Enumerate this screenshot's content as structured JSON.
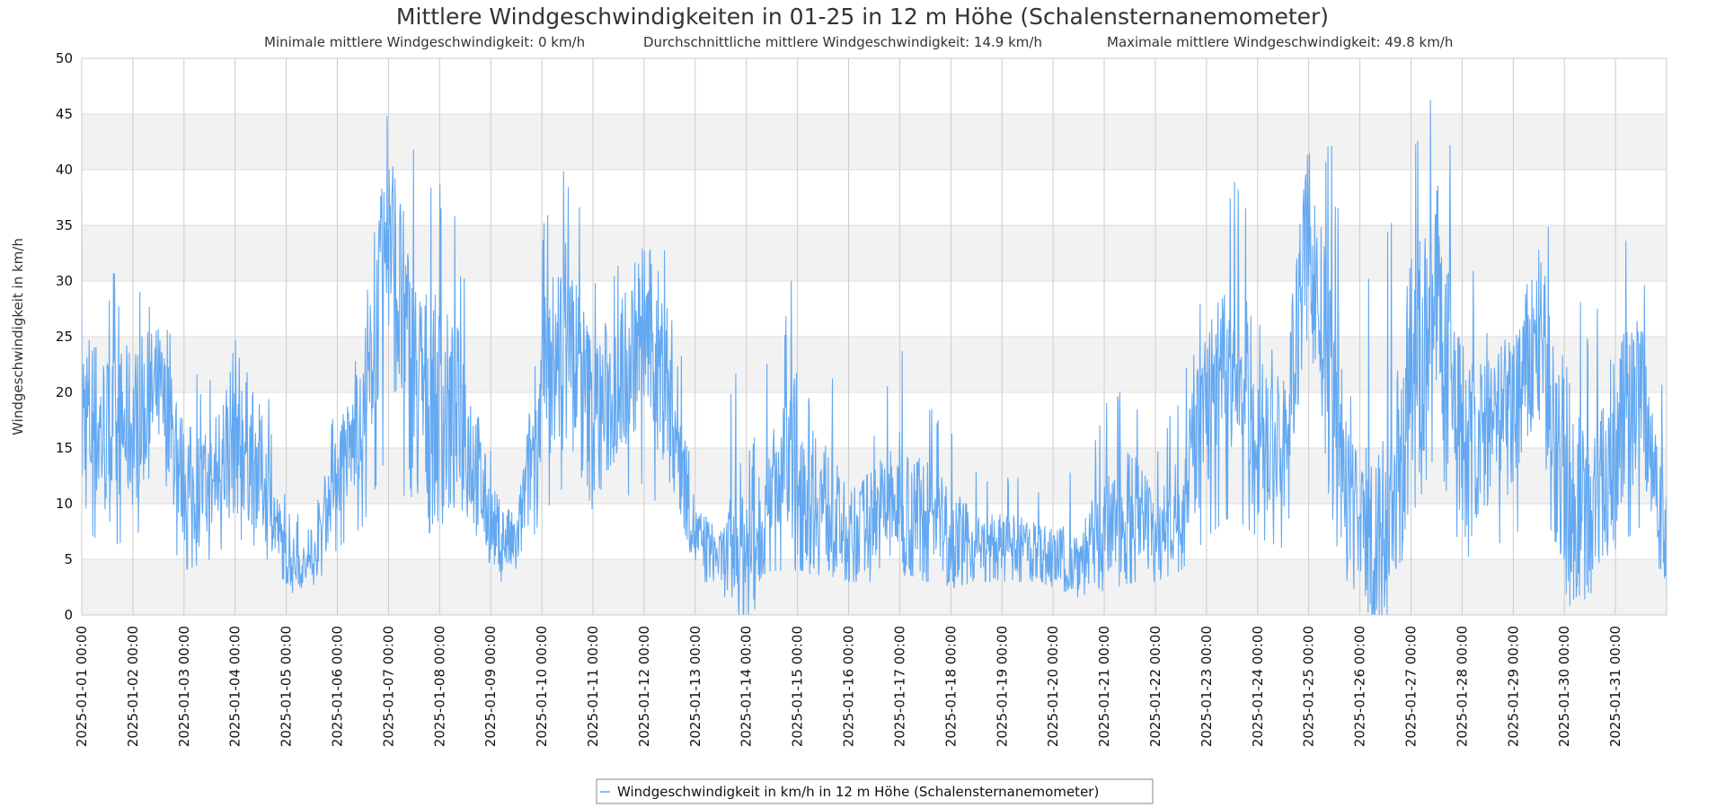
{
  "chart_data": {
    "type": "line",
    "title": "Mittlere Windgeschwindigkeiten in 01-25 in 12 m Höhe (Schalensternanemometer)",
    "subtitle_parts": [
      "Minimale mittlere Windgeschwindigkeit: 0 km/h",
      "Durchschnittliche mittlere Windgeschwindigkeit: 14.9 km/h",
      "Maximale mittlere Windgeschwindigkeit: 49.8 km/h"
    ],
    "ylabel": "Windgeschwindigkeit in km/h",
    "xlabel": "",
    "ylim": [
      0,
      50
    ],
    "yticks": [
      0,
      5,
      10,
      15,
      20,
      25,
      30,
      35,
      40,
      45,
      50
    ],
    "xlim": [
      "2025-01-01 00:00",
      "2025-02-01 00:00"
    ],
    "xticks": [
      "2025-01-01 00:00",
      "2025-01-02 00:00",
      "2025-01-03 00:00",
      "2025-01-04 00:00",
      "2025-01-05 00:00",
      "2025-01-06 00:00",
      "2025-01-07 00:00",
      "2025-01-08 00:00",
      "2025-01-09 00:00",
      "2025-01-10 00:00",
      "2025-01-11 00:00",
      "2025-01-12 00:00",
      "2025-01-13 00:00",
      "2025-01-14 00:00",
      "2025-01-15 00:00",
      "2025-01-16 00:00",
      "2025-01-17 00:00",
      "2025-01-18 00:00",
      "2025-01-19 00:00",
      "2025-01-20 00:00",
      "2025-01-21 00:00",
      "2025-01-22 00:00",
      "2025-01-23 00:00",
      "2025-01-24 00:00",
      "2025-01-25 00:00",
      "2025-01-26 00:00",
      "2025-01-27 00:00",
      "2025-01-28 00:00",
      "2025-01-29 00:00",
      "2025-01-30 00:00",
      "2025-01-31 00:00"
    ],
    "grid": true,
    "alternating_bands": true,
    "legend_position": "bottom-center",
    "series": [
      {
        "name": "Windgeschwindigkeit in km/h in 12 m Höhe (Schalensternanemometer)",
        "color": "#63a8f1",
        "x": [
          "2025-01-01 00:00",
          "2025-01-01 12:00",
          "2025-01-02 00:00",
          "2025-01-02 12:00",
          "2025-01-03 00:00",
          "2025-01-03 12:00",
          "2025-01-04 00:00",
          "2025-01-04 12:00",
          "2025-01-05 00:00",
          "2025-01-05 12:00",
          "2025-01-06 00:00",
          "2025-01-06 12:00",
          "2025-01-07 00:00",
          "2025-01-07 12:00",
          "2025-01-08 00:00",
          "2025-01-08 12:00",
          "2025-01-09 00:00",
          "2025-01-09 12:00",
          "2025-01-10 00:00",
          "2025-01-10 12:00",
          "2025-01-11 00:00",
          "2025-01-11 12:00",
          "2025-01-12 00:00",
          "2025-01-12 12:00",
          "2025-01-13 00:00",
          "2025-01-13 12:00",
          "2025-01-14 00:00",
          "2025-01-14 12:00",
          "2025-01-15 00:00",
          "2025-01-15 12:00",
          "2025-01-16 00:00",
          "2025-01-16 12:00",
          "2025-01-17 00:00",
          "2025-01-17 12:00",
          "2025-01-18 00:00",
          "2025-01-18 12:00",
          "2025-01-19 00:00",
          "2025-01-19 12:00",
          "2025-01-20 00:00",
          "2025-01-20 12:00",
          "2025-01-21 00:00",
          "2025-01-21 12:00",
          "2025-01-22 00:00",
          "2025-01-22 12:00",
          "2025-01-23 00:00",
          "2025-01-23 12:00",
          "2025-01-24 00:00",
          "2025-01-24 12:00",
          "2025-01-25 00:00",
          "2025-01-25 12:00",
          "2025-01-26 00:00",
          "2025-01-26 12:00",
          "2025-01-27 00:00",
          "2025-01-27 12:00",
          "2025-01-28 00:00",
          "2025-01-28 12:00",
          "2025-01-29 00:00",
          "2025-01-29 12:00",
          "2025-01-30 00:00",
          "2025-01-30 12:00",
          "2025-01-31 00:00",
          "2025-01-31 12:00",
          "2025-02-01 00:00"
        ],
        "y": [
          18,
          16,
          17,
          20,
          12,
          11,
          17,
          13,
          5,
          4,
          13,
          17,
          34,
          20,
          18,
          17,
          8,
          6,
          20,
          25,
          17,
          21,
          26,
          20,
          7,
          5,
          6,
          12,
          13,
          10,
          7,
          9,
          10,
          9,
          7,
          6,
          6,
          6,
          5,
          5,
          7,
          9,
          7,
          10,
          19,
          21,
          18,
          15,
          34,
          17,
          8,
          6,
          20,
          29,
          15,
          16,
          18,
          25,
          12,
          8,
          16,
          21,
          6
        ],
        "range_low": [
          8,
          6,
          7,
          9,
          4,
          5,
          7,
          6,
          2,
          2,
          6,
          8,
          15,
          8,
          7,
          6,
          3,
          3,
          9,
          12,
          7,
          10,
          12,
          8,
          3,
          3,
          3,
          4,
          4,
          4,
          3,
          3,
          4,
          3,
          3,
          3,
          3,
          3,
          3,
          3,
          3,
          3,
          3,
          4,
          7,
          9,
          7,
          6,
          18,
          8,
          4,
          3,
          8,
          15,
          5,
          6,
          7,
          10,
          5,
          4,
          6,
          8,
          3
        ],
        "range_high": [
          38,
          31,
          31,
          29,
          22,
          22,
          33,
          24,
          10,
          8,
          20,
          25,
          49,
          44,
          40,
          33,
          15,
          12,
          35,
          43,
          33,
          33,
          39,
          35,
          13,
          11,
          34,
          20,
          34,
          25,
          16,
          18,
          25,
          20,
          18,
          13,
          13,
          12,
          12,
          14,
          19,
          23,
          15,
          20,
          32,
          39,
          38,
          25,
          46,
          42,
          31,
          35,
          47,
          49,
          37,
          28,
          33,
          36,
          42,
          25,
          35,
          35,
          20
        ],
        "min": 0,
        "max": 49.8,
        "mean": 14.9
      }
    ]
  }
}
